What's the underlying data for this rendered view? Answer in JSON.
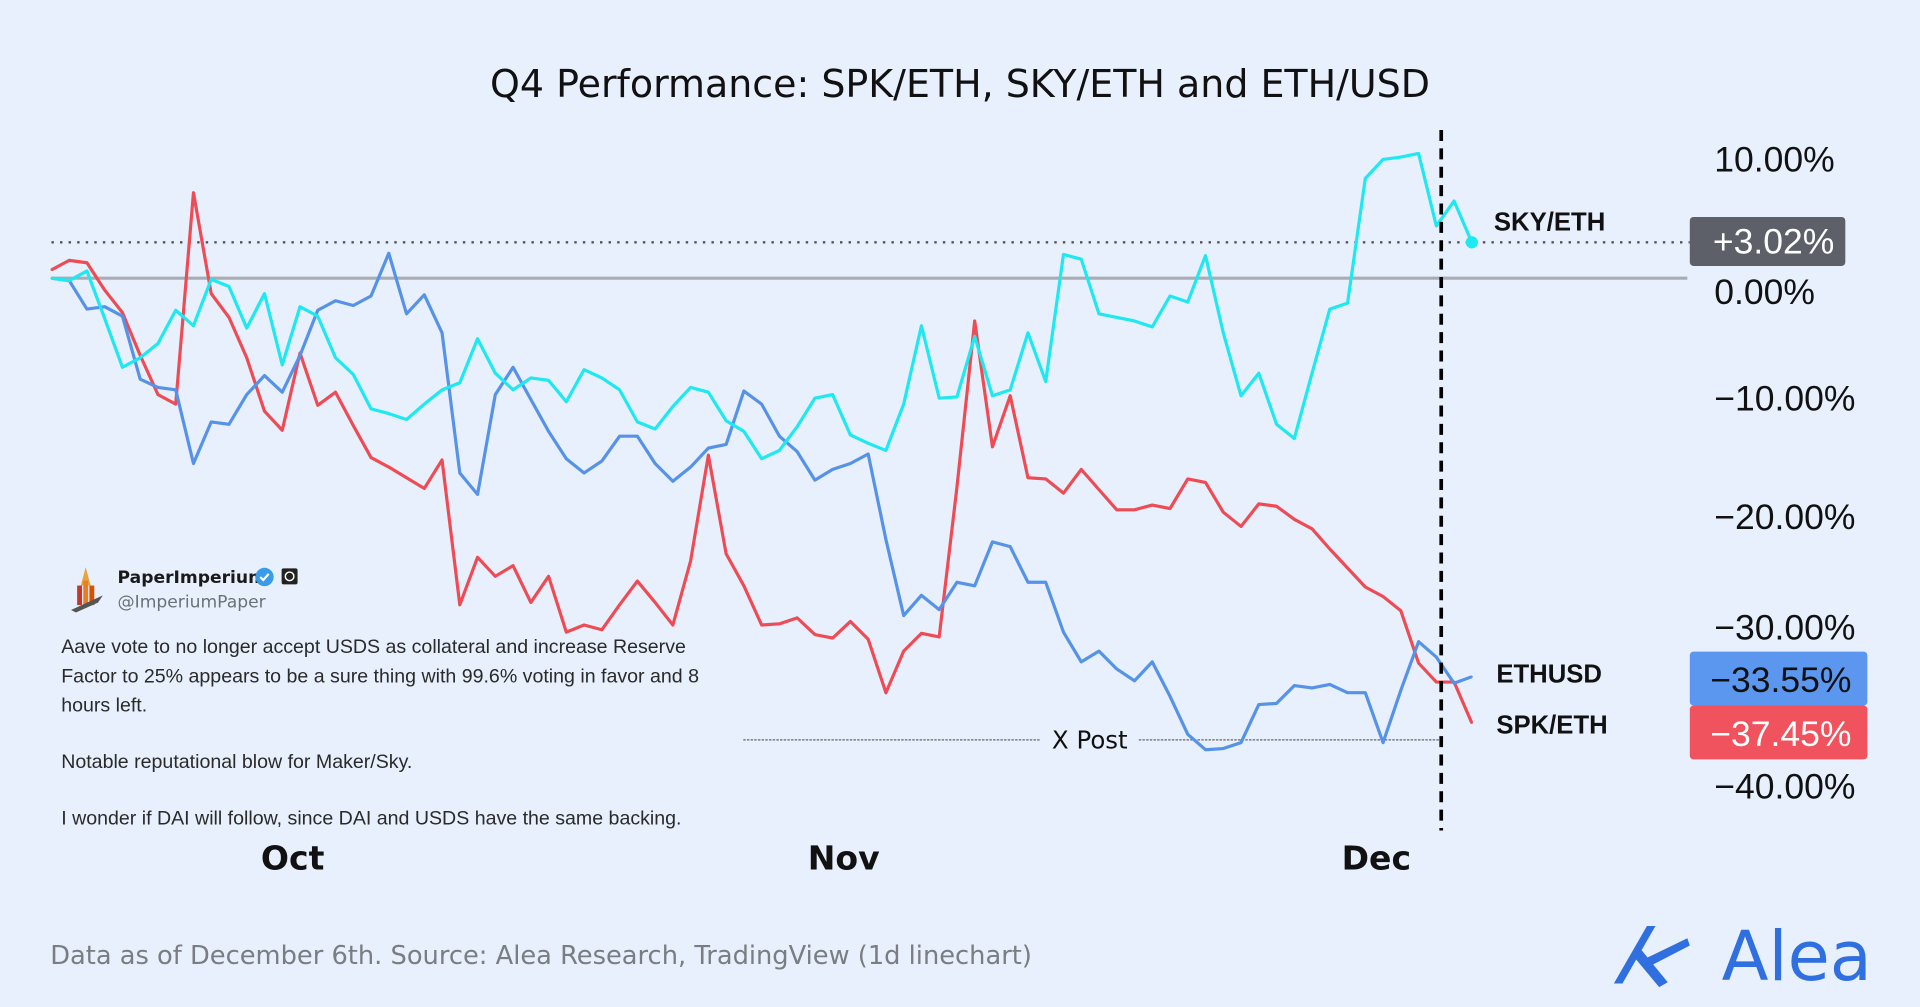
{
  "chart_data": {
    "type": "line",
    "title": "Q4 Performance: SPK/ETH, SKY/ETH and ETH/USD",
    "x_start": "Sep 17",
    "x_end": "Dec 6",
    "x_interval": "1d",
    "x_tick_labels": [
      "Oct",
      "Nov",
      "Dec"
    ],
    "y_tick_labels": [
      "10.00%",
      "0.00%",
      "−10.00%",
      "−20.00%",
      "−30.00%",
      "−40.00%"
    ],
    "y_ticks": [
      10,
      0,
      -10,
      -20,
      -30,
      -40
    ],
    "ylim": [
      -42,
      13
    ],
    "y_unit": "%",
    "grid": false,
    "zero_line": true,
    "series": [
      {
        "name": "SKY/ETH",
        "color": "#1ee8f0",
        "last_value_label": "+3.02%",
        "badge_color": "#5d6068",
        "values": [
          0,
          -0.2,
          0.6,
          -3.4,
          -7.5,
          -6.7,
          -5.5,
          -2.7,
          -4.0,
          -0.1,
          -0.7,
          -4.2,
          -1.3,
          -7.3,
          -2.4,
          -3.2,
          -6.7,
          -8.1,
          -11.0,
          -11.4,
          -11.9,
          -10.6,
          -9.4,
          -8.8,
          -5.1,
          -8.0,
          -9.4,
          -8.4,
          -8.6,
          -10.4,
          -7.7,
          -8.4,
          -9.4,
          -12.1,
          -12.7,
          -10.8,
          -9.2,
          -9.6,
          -12.0,
          -12.9,
          -15.2,
          -14.5,
          -12.5,
          -10.1,
          -9.8,
          -13.2,
          -13.9,
          -14.5,
          -10.6,
          -4.0,
          -10.1,
          -10.0,
          -4.9,
          -9.9,
          -9.4,
          -4.6,
          -8.7,
          2.0,
          1.6,
          -3.0,
          -3.3,
          -3.6,
          -4.1,
          -1.5,
          -2.0,
          1.9,
          -4.6,
          -9.9,
          -8.0,
          -12.3,
          -13.5,
          -8.0,
          -2.6,
          -2.1,
          8.4,
          10.0,
          10.2,
          10.5,
          4.4,
          6.5,
          3.02
        ]
      },
      {
        "name": "ETHUSD",
        "color": "#5592e8",
        "last_value_label": "−33.55%",
        "badge_color": "#5b97ee",
        "values": [
          0,
          -0.2,
          -2.6,
          -2.4,
          -3.2,
          -8.5,
          -9.2,
          -9.4,
          -15.6,
          -12.1,
          -12.3,
          -9.8,
          -8.2,
          -9.6,
          -6.5,
          -2.7,
          -1.9,
          -2.3,
          -1.5,
          2.1,
          -3.0,
          -1.4,
          -4.6,
          -16.4,
          -18.2,
          -9.8,
          -7.5,
          -10.2,
          -12.9,
          -15.2,
          -16.4,
          -15.4,
          -13.3,
          -13.3,
          -15.6,
          -17.1,
          -15.9,
          -14.3,
          -14.0,
          -9.5,
          -10.6,
          -13.3,
          -14.6,
          -17.0,
          -16.1,
          -15.6,
          -14.8,
          -22.0,
          -28.4,
          -26.7,
          -27.9,
          -25.6,
          -25.9,
          -22.2,
          -22.6,
          -25.6,
          -25.6,
          -29.8,
          -32.3,
          -31.4,
          -32.9,
          -33.9,
          -32.3,
          -35.2,
          -38.4,
          -39.7,
          -39.6,
          -39.1,
          -35.9,
          -35.8,
          -34.3,
          -34.5,
          -34.2,
          -34.9,
          -34.9,
          -39.1,
          -34.7,
          -30.6,
          -31.9,
          -34.1,
          -33.55
        ]
      },
      {
        "name": "SPK/ETH",
        "color": "#ef4b55",
        "last_value_label": "−37.45%",
        "badge_color": "#f0535e",
        "values": [
          0.7,
          1.5,
          1.3,
          -1.0,
          -2.9,
          -6.5,
          -9.8,
          -10.6,
          7.2,
          -1.3,
          -3.3,
          -6.7,
          -11.2,
          -12.8,
          -6.3,
          -10.7,
          -9.6,
          -12.4,
          -15.1,
          -15.9,
          -16.8,
          -17.7,
          -15.3,
          -27.5,
          -23.5,
          -25.1,
          -24.2,
          -27.3,
          -25.1,
          -29.8,
          -29.2,
          -29.6,
          -27.5,
          -25.5,
          -27.3,
          -29.2,
          -23.8,
          -14.9,
          -23.2,
          -25.9,
          -29.2,
          -29.1,
          -28.6,
          -30.0,
          -30.3,
          -28.9,
          -30.4,
          -34.9,
          -31.4,
          -29.9,
          -30.2,
          -17.6,
          -3.6,
          -14.2,
          -9.9,
          -16.8,
          -16.9,
          -18.1,
          -16.1,
          -17.8,
          -19.5,
          -19.5,
          -19.1,
          -19.4,
          -16.9,
          -17.2,
          -19.7,
          -20.9,
          -19.0,
          -19.2,
          -20.3,
          -21.1,
          -22.8,
          -24.4,
          -26.0,
          -26.8,
          -28.0,
          -32.4,
          -34.0,
          -34.0,
          -37.45
        ]
      }
    ],
    "annotations": [
      {
        "label": "X Post",
        "date": "Dec 4",
        "style": "dashed-vertical"
      }
    ]
  },
  "tweet": {
    "name": "PaperImperium",
    "handle": "@ImperiumPaper",
    "lines": [
      "Aave vote to no longer accept USDS as collateral and increase Reserve",
      "Factor to 25% appears to be a sure thing with 99.6% voting in favor and 8",
      "hours left.",
      "Notable reputational blow for Maker/Sky.",
      "I wonder if DAI will follow, since DAI and USDS have the same backing."
    ]
  },
  "footer": {
    "source": "Data as of December 6th. Source: Alea Research, TradingView (1d linechart)"
  },
  "brand": {
    "name": "Alea",
    "color": "#2f6fdf"
  },
  "colors": {
    "background": "#e7f0fc"
  }
}
